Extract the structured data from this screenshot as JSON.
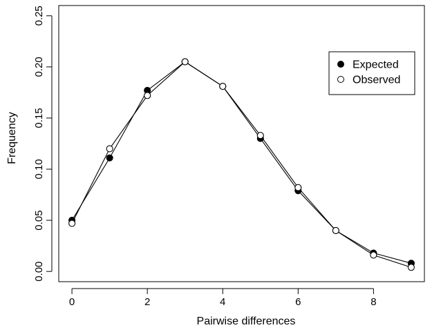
{
  "chart_data": {
    "type": "line",
    "xlabel": "Pairwise differences",
    "ylabel": "Frequency",
    "xlim": [
      -0.35,
      9.35
    ],
    "ylim": [
      -0.01,
      0.26
    ],
    "x_ticks": [
      0,
      2,
      4,
      6,
      8
    ],
    "x_tick_labels": [
      "0",
      "2",
      "4",
      "6",
      "8"
    ],
    "y_ticks": [
      0.0,
      0.05,
      0.1,
      0.15,
      0.2,
      0.25
    ],
    "y_tick_labels": [
      "0.00",
      "0.05",
      "0.10",
      "0.15",
      "0.20",
      "0.25"
    ],
    "x": [
      0,
      1,
      2,
      3,
      4,
      5,
      6,
      7,
      8,
      9
    ],
    "series": [
      {
        "name": "Expected",
        "marker": "filled-circle",
        "color": "#000000",
        "values": [
          0.05,
          0.111,
          0.177,
          0.205,
          0.181,
          0.13,
          0.079,
          0.04,
          0.018,
          0.008
        ]
      },
      {
        "name": "Observed",
        "marker": "open-circle",
        "color": "#000000",
        "values": [
          0.047,
          0.12,
          0.172,
          0.205,
          0.181,
          0.133,
          0.082,
          0.04,
          0.016,
          0.004
        ]
      }
    ],
    "legend_position": "top-right",
    "grid": false
  }
}
